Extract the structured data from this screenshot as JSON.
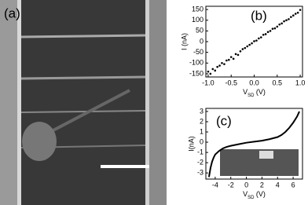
{
  "image_panel": {
    "label": "(a)"
  },
  "chart_data": [
    {
      "type": "scatter",
      "label": "(b)",
      "ylabel": "I (nA)",
      "xlabel": {
        "main": "V",
        "sub": "SD",
        "rest": " (V)"
      },
      "x": [
        -1.0,
        -0.95,
        -0.9,
        -0.85,
        -0.8,
        -0.75,
        -0.7,
        -0.65,
        -0.6,
        -0.55,
        -0.5,
        -0.45,
        -0.4,
        -0.35,
        -0.3,
        -0.25,
        -0.2,
        -0.15,
        -0.1,
        -0.05,
        0,
        0.05,
        0.1,
        0.15,
        0.2,
        0.25,
        0.3,
        0.35,
        0.4,
        0.45,
        0.5,
        0.55,
        0.6,
        0.65,
        0.7,
        0.75,
        0.8,
        0.85,
        0.9,
        0.95,
        1.0
      ],
      "values": [
        -140,
        -150,
        -128,
        -135,
        -118,
        -112,
        -100,
        -105,
        -88,
        -85,
        -72,
        -80,
        -58,
        -62,
        -45,
        -35,
        -30,
        -22,
        -15,
        -8,
        2,
        5,
        15,
        20,
        32,
        35,
        45,
        50,
        60,
        62,
        70,
        80,
        85,
        95,
        100,
        105,
        115,
        122,
        130,
        135,
        148
      ],
      "color": "#000000",
      "xlim": [
        -1.05,
        1.05
      ],
      "ylim": [
        -165,
        165
      ],
      "xticks": [
        {
          "value": -1,
          "label": "-1.0"
        },
        {
          "value": -0.5,
          "label": "-0.5"
        },
        {
          "value": 0,
          "label": "0.0"
        },
        {
          "value": 0.5,
          "label": "0.5"
        },
        {
          "value": 1,
          "label": "1.0"
        }
      ],
      "yticks": [
        -150,
        -100,
        -50,
        0,
        50,
        100,
        150
      ]
    },
    {
      "type": "line",
      "label": "(c)",
      "ylabel": "I(nA)",
      "xlabel": {
        "main": "V",
        "sub": "SD",
        "rest": " (V)"
      },
      "x": [
        -4.8,
        -4.6,
        -4.4,
        -4.2,
        -4,
        -3.5,
        -3,
        -2.5,
        -2,
        -1,
        0,
        1,
        2,
        3,
        4,
        4.5,
        5,
        5.5,
        6,
        6.5,
        6.8
      ],
      "values": [
        -3.4,
        -2.5,
        -1.9,
        -1.5,
        -1.2,
        -0.85,
        -0.6,
        -0.45,
        -0.35,
        -0.2,
        -0.05,
        0.05,
        0.15,
        0.3,
        0.5,
        0.7,
        1.0,
        1.4,
        1.9,
        2.5,
        3.0
      ],
      "color": "#000000",
      "xlim": [
        -5.2,
        7.2
      ],
      "ylim": [
        -3.6,
        3.3
      ],
      "xticks": [
        -4,
        -2,
        0,
        2,
        4,
        6
      ],
      "yticks": [
        -3,
        -2,
        -1,
        0,
        1,
        2,
        3
      ]
    }
  ]
}
